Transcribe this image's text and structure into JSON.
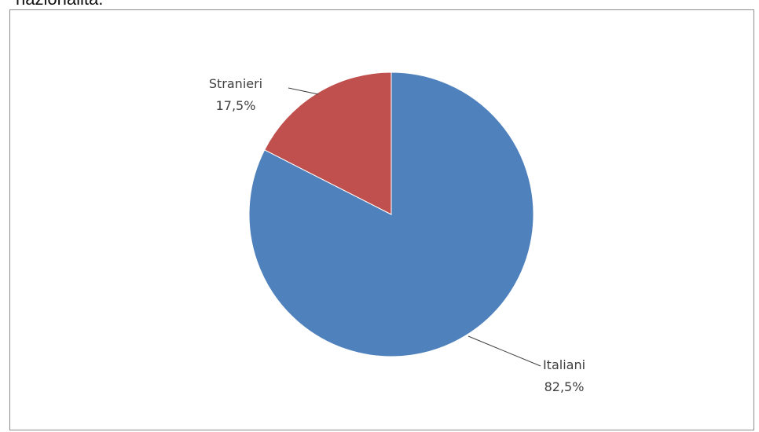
{
  "page": {
    "caption": "nazionalità."
  },
  "chart_data": {
    "type": "pie",
    "title": "",
    "slices": [
      {
        "label": "Italiani",
        "value": 82.5,
        "value_label": "82,5%",
        "color": "#4f81bd"
      },
      {
        "label": "Stranieri",
        "value": 17.5,
        "value_label": "17,5%",
        "color": "#c0504d"
      }
    ],
    "start_angle_deg": 0,
    "direction": "clockwise",
    "legend": "none",
    "label_placement": "outside-with-leader-lines"
  }
}
